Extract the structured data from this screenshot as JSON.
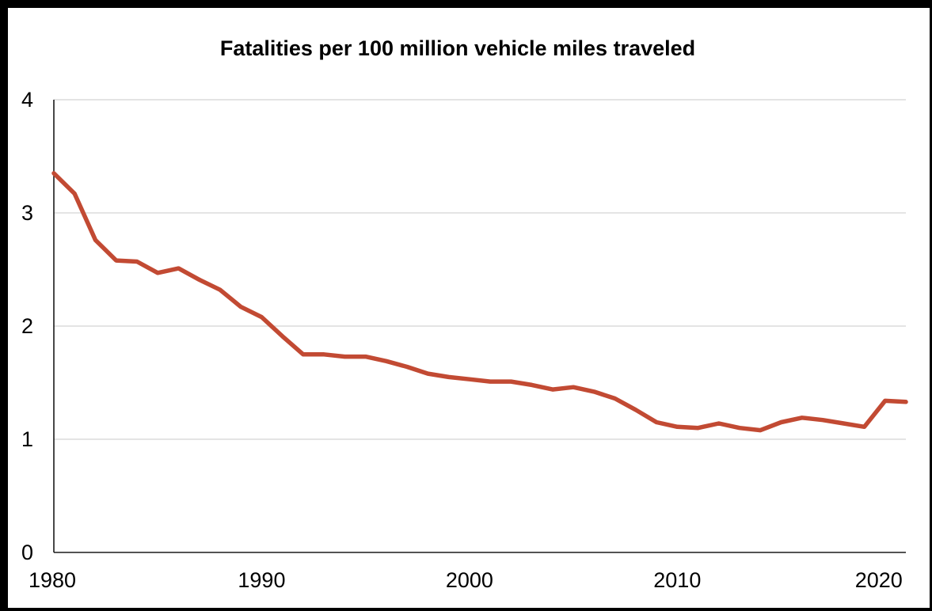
{
  "chart_data": {
    "type": "line",
    "title": "Fatalities per 100 million vehicle miles traveled",
    "xlabel": "",
    "ylabel": "",
    "xlim": [
      1980,
      2021
    ],
    "ylim": [
      0,
      4
    ],
    "x_ticks": [
      1980,
      1990,
      2000,
      2010,
      2020
    ],
    "y_ticks": [
      0,
      1,
      2,
      3,
      4
    ],
    "grid": "horizontal",
    "legend": "none",
    "colors": {
      "line": "#c24a33",
      "grid": "#d4d4d4",
      "axis": "#1a1a1a",
      "background": "#ffffff",
      "frame": "#000000"
    },
    "series": [
      {
        "x": [
          1980,
          1981,
          1982,
          1983,
          1984,
          1985,
          1986,
          1987,
          1988,
          1989,
          1990,
          1991,
          1992,
          1993,
          1994,
          1995,
          1996,
          1997,
          1998,
          1999,
          2000,
          2001,
          2002,
          2003,
          2004,
          2005,
          2006,
          2007,
          2008,
          2009,
          2010,
          2011,
          2012,
          2013,
          2014,
          2015,
          2016,
          2017,
          2018,
          2019,
          2020,
          2021
        ],
        "values": [
          3.35,
          3.17,
          2.76,
          2.58,
          2.57,
          2.47,
          2.51,
          2.41,
          2.32,
          2.17,
          2.08,
          1.91,
          1.75,
          1.75,
          1.73,
          1.73,
          1.69,
          1.64,
          1.58,
          1.55,
          1.53,
          1.51,
          1.51,
          1.48,
          1.44,
          1.46,
          1.42,
          1.36,
          1.26,
          1.15,
          1.11,
          1.1,
          1.14,
          1.1,
          1.08,
          1.15,
          1.19,
          1.17,
          1.14,
          1.11,
          1.34,
          1.33
        ]
      }
    ]
  }
}
